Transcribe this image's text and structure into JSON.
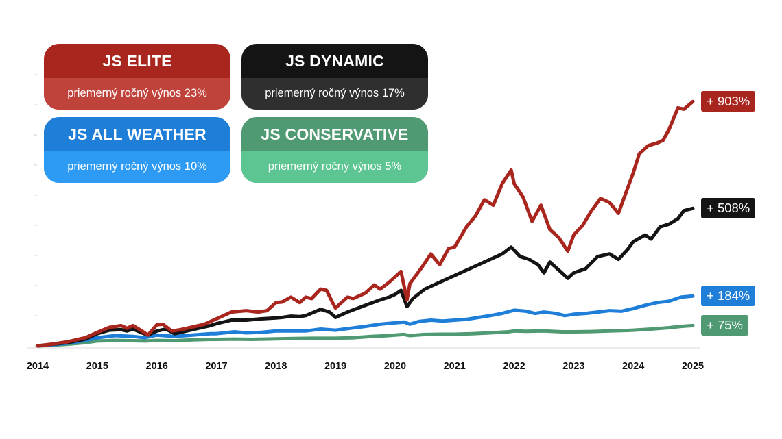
{
  "chart_data": {
    "type": "line",
    "title": "",
    "xlabel": "",
    "ylabel": "",
    "x_ticks": [
      "2014",
      "2015",
      "2016",
      "2017",
      "2018",
      "2019",
      "2020",
      "2021",
      "2022",
      "2023",
      "2024",
      "2025"
    ],
    "xlim": [
      2014.0,
      2025.0
    ],
    "ylim": [
      0,
      1000
    ],
    "grid": false,
    "legend": "top-left",
    "series": [
      {
        "name": "JS ELITE",
        "subtitle": "priemerný ročný výnos 23%",
        "end_label": "+ 903%",
        "color": "#a9261f",
        "sub_color": "#c0433b",
        "points": [
          [
            2014.0,
            0
          ],
          [
            2014.2,
            5
          ],
          [
            2014.5,
            15
          ],
          [
            2014.8,
            30
          ],
          [
            2015.0,
            50
          ],
          [
            2015.2,
            68
          ],
          [
            2015.4,
            75
          ],
          [
            2015.5,
            65
          ],
          [
            2015.6,
            75
          ],
          [
            2015.75,
            55
          ],
          [
            2015.85,
            40
          ],
          [
            2016.0,
            78
          ],
          [
            2016.1,
            80
          ],
          [
            2016.25,
            55
          ],
          [
            2016.4,
            60
          ],
          [
            2016.6,
            70
          ],
          [
            2016.8,
            80
          ],
          [
            2017.0,
            100
          ],
          [
            2017.25,
            125
          ],
          [
            2017.5,
            130
          ],
          [
            2017.7,
            125
          ],
          [
            2017.85,
            130
          ],
          [
            2018.0,
            160
          ],
          [
            2018.1,
            162
          ],
          [
            2018.25,
            180
          ],
          [
            2018.4,
            160
          ],
          [
            2018.5,
            180
          ],
          [
            2018.6,
            175
          ],
          [
            2018.75,
            210
          ],
          [
            2018.85,
            205
          ],
          [
            2018.95,
            160
          ],
          [
            2019.0,
            140
          ],
          [
            2019.2,
            180
          ],
          [
            2019.3,
            175
          ],
          [
            2019.5,
            195
          ],
          [
            2019.65,
            225
          ],
          [
            2019.75,
            210
          ],
          [
            2019.9,
            235
          ],
          [
            2020.0,
            255
          ],
          [
            2020.1,
            275
          ],
          [
            2020.2,
            170
          ],
          [
            2020.25,
            230
          ],
          [
            2020.45,
            290
          ],
          [
            2020.6,
            340
          ],
          [
            2020.75,
            300
          ],
          [
            2020.9,
            360
          ],
          [
            2021.0,
            365
          ],
          [
            2021.2,
            440
          ],
          [
            2021.35,
            480
          ],
          [
            2021.5,
            540
          ],
          [
            2021.65,
            520
          ],
          [
            2021.8,
            600
          ],
          [
            2021.95,
            650
          ],
          [
            2022.0,
            600
          ],
          [
            2022.15,
            550
          ],
          [
            2022.3,
            460
          ],
          [
            2022.45,
            520
          ],
          [
            2022.6,
            430
          ],
          [
            2022.75,
            400
          ],
          [
            2022.9,
            350
          ],
          [
            2023.0,
            410
          ],
          [
            2023.15,
            445
          ],
          [
            2023.3,
            500
          ],
          [
            2023.45,
            545
          ],
          [
            2023.6,
            530
          ],
          [
            2023.75,
            490
          ],
          [
            2023.9,
            580
          ],
          [
            2024.0,
            640
          ],
          [
            2024.1,
            710
          ],
          [
            2024.25,
            740
          ],
          [
            2024.4,
            750
          ],
          [
            2024.5,
            760
          ],
          [
            2024.6,
            800
          ],
          [
            2024.75,
            880
          ],
          [
            2024.85,
            875
          ],
          [
            2025.0,
            903
          ]
        ]
      },
      {
        "name": "JS DYNAMIC",
        "subtitle": "priemerný ročný výnos 17%",
        "end_label": "+ 508%",
        "color": "#141414",
        "sub_color": "#2f2f2f",
        "points": [
          [
            2014.0,
            0
          ],
          [
            2014.2,
            5
          ],
          [
            2014.5,
            12
          ],
          [
            2014.8,
            25
          ],
          [
            2015.0,
            45
          ],
          [
            2015.2,
            58
          ],
          [
            2015.4,
            60
          ],
          [
            2015.5,
            55
          ],
          [
            2015.6,
            62
          ],
          [
            2015.75,
            48
          ],
          [
            2015.85,
            40
          ],
          [
            2016.0,
            55
          ],
          [
            2016.15,
            62
          ],
          [
            2016.3,
            45
          ],
          [
            2016.5,
            55
          ],
          [
            2016.7,
            65
          ],
          [
            2016.9,
            75
          ],
          [
            2017.0,
            82
          ],
          [
            2017.25,
            95
          ],
          [
            2017.5,
            95
          ],
          [
            2017.75,
            100
          ],
          [
            2018.0,
            103
          ],
          [
            2018.1,
            105
          ],
          [
            2018.25,
            110
          ],
          [
            2018.4,
            108
          ],
          [
            2018.5,
            112
          ],
          [
            2018.75,
            135
          ],
          [
            2018.9,
            125
          ],
          [
            2019.0,
            105
          ],
          [
            2019.2,
            125
          ],
          [
            2019.5,
            150
          ],
          [
            2019.75,
            170
          ],
          [
            2019.9,
            180
          ],
          [
            2020.0,
            190
          ],
          [
            2020.1,
            205
          ],
          [
            2020.2,
            145
          ],
          [
            2020.3,
            175
          ],
          [
            2020.5,
            210
          ],
          [
            2020.7,
            230
          ],
          [
            2020.85,
            245
          ],
          [
            2021.0,
            260
          ],
          [
            2021.2,
            280
          ],
          [
            2021.4,
            300
          ],
          [
            2021.6,
            320
          ],
          [
            2021.8,
            340
          ],
          [
            2021.95,
            365
          ],
          [
            2022.1,
            330
          ],
          [
            2022.25,
            320
          ],
          [
            2022.4,
            300
          ],
          [
            2022.5,
            270
          ],
          [
            2022.6,
            310
          ],
          [
            2022.75,
            280
          ],
          [
            2022.9,
            250
          ],
          [
            2023.0,
            270
          ],
          [
            2023.2,
            285
          ],
          [
            2023.4,
            330
          ],
          [
            2023.6,
            340
          ],
          [
            2023.75,
            320
          ],
          [
            2023.9,
            355
          ],
          [
            2024.0,
            385
          ],
          [
            2024.2,
            410
          ],
          [
            2024.3,
            395
          ],
          [
            2024.45,
            440
          ],
          [
            2024.6,
            450
          ],
          [
            2024.75,
            470
          ],
          [
            2024.85,
            500
          ],
          [
            2025.0,
            508
          ]
        ]
      },
      {
        "name": "JS ALL WEATHER",
        "subtitle": "priemerný ročný výnos 10%",
        "end_label": "+ 184%",
        "color": "#1f7fd8",
        "sub_color": "#2d9bf3",
        "points": [
          [
            2014.0,
            0
          ],
          [
            2014.2,
            3
          ],
          [
            2014.5,
            10
          ],
          [
            2014.8,
            20
          ],
          [
            2015.0,
            30
          ],
          [
            2015.3,
            38
          ],
          [
            2015.6,
            35
          ],
          [
            2015.8,
            30
          ],
          [
            2016.0,
            40
          ],
          [
            2016.3,
            35
          ],
          [
            2016.6,
            40
          ],
          [
            2016.9,
            45
          ],
          [
            2017.0,
            45
          ],
          [
            2017.3,
            52
          ],
          [
            2017.5,
            48
          ],
          [
            2017.75,
            50
          ],
          [
            2018.0,
            55
          ],
          [
            2018.25,
            55
          ],
          [
            2018.5,
            55
          ],
          [
            2018.75,
            62
          ],
          [
            2019.0,
            58
          ],
          [
            2019.25,
            65
          ],
          [
            2019.5,
            72
          ],
          [
            2019.75,
            80
          ],
          [
            2020.0,
            85
          ],
          [
            2020.15,
            88
          ],
          [
            2020.25,
            80
          ],
          [
            2020.4,
            90
          ],
          [
            2020.6,
            95
          ],
          [
            2020.8,
            92
          ],
          [
            2021.0,
            95
          ],
          [
            2021.2,
            98
          ],
          [
            2021.4,
            105
          ],
          [
            2021.6,
            112
          ],
          [
            2021.8,
            120
          ],
          [
            2022.0,
            132
          ],
          [
            2022.2,
            128
          ],
          [
            2022.35,
            120
          ],
          [
            2022.5,
            125
          ],
          [
            2022.7,
            120
          ],
          [
            2022.85,
            112
          ],
          [
            2023.0,
            117
          ],
          [
            2023.2,
            120
          ],
          [
            2023.4,
            125
          ],
          [
            2023.6,
            130
          ],
          [
            2023.8,
            128
          ],
          [
            2024.0,
            138
          ],
          [
            2024.2,
            150
          ],
          [
            2024.4,
            160
          ],
          [
            2024.6,
            165
          ],
          [
            2024.8,
            180
          ],
          [
            2025.0,
            184
          ]
        ]
      },
      {
        "name": "JS CONSERVATIVE",
        "subtitle": "priemerný ročný výnos 5%",
        "end_label": "+ 75%",
        "color": "#4f9a73",
        "sub_color": "#5cc591",
        "points": [
          [
            2014.0,
            0
          ],
          [
            2014.2,
            2
          ],
          [
            2014.5,
            6
          ],
          [
            2014.8,
            12
          ],
          [
            2015.0,
            18
          ],
          [
            2015.3,
            20
          ],
          [
            2015.6,
            19
          ],
          [
            2015.8,
            18
          ],
          [
            2016.0,
            20
          ],
          [
            2016.3,
            19
          ],
          [
            2016.6,
            22
          ],
          [
            2016.9,
            24
          ],
          [
            2017.0,
            24
          ],
          [
            2017.3,
            25
          ],
          [
            2017.6,
            24
          ],
          [
            2018.0,
            26
          ],
          [
            2018.3,
            27
          ],
          [
            2018.6,
            28
          ],
          [
            2019.0,
            28
          ],
          [
            2019.3,
            30
          ],
          [
            2019.6,
            35
          ],
          [
            2019.9,
            38
          ],
          [
            2020.0,
            40
          ],
          [
            2020.15,
            42
          ],
          [
            2020.25,
            38
          ],
          [
            2020.5,
            42
          ],
          [
            2020.75,
            43
          ],
          [
            2021.0,
            43
          ],
          [
            2021.3,
            45
          ],
          [
            2021.6,
            48
          ],
          [
            2021.9,
            52
          ],
          [
            2022.0,
            55
          ],
          [
            2022.2,
            54
          ],
          [
            2022.5,
            55
          ],
          [
            2022.8,
            52
          ],
          [
            2023.0,
            52
          ],
          [
            2023.3,
            53
          ],
          [
            2023.6,
            55
          ],
          [
            2023.9,
            57
          ],
          [
            2024.0,
            58
          ],
          [
            2024.3,
            62
          ],
          [
            2024.6,
            67
          ],
          [
            2024.8,
            72
          ],
          [
            2025.0,
            75
          ]
        ]
      }
    ]
  }
}
